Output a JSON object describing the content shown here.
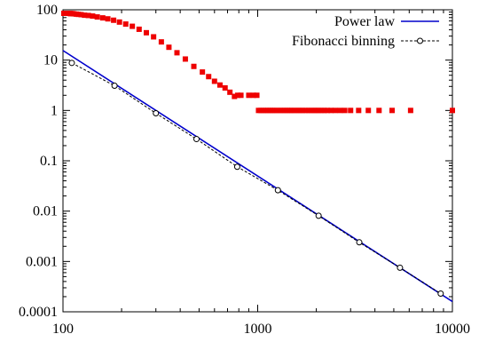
{
  "chart_data": {
    "type": "scatter",
    "x_scale": "log",
    "y_scale": "log",
    "xlim": [
      100,
      10000
    ],
    "ylim": [
      0.0001,
      100
    ],
    "grid": false,
    "legend_position": "top-right",
    "x_ticks": [
      {
        "value": 100,
        "label": "100"
      },
      {
        "value": 1000,
        "label": "1000"
      },
      {
        "value": 10000,
        "label": "10000"
      }
    ],
    "y_ticks": [
      {
        "value": 100,
        "label": "100"
      },
      {
        "value": 10,
        "label": "10"
      },
      {
        "value": 1,
        "label": "1"
      },
      {
        "value": 0.1,
        "label": "0.1"
      },
      {
        "value": 0.01,
        "label": "0.01"
      },
      {
        "value": 0.001,
        "label": "0.001"
      },
      {
        "value": 0.0001,
        "label": "0.0001"
      }
    ],
    "series": [
      {
        "name": "Power law",
        "kind": "line",
        "color": "#0000cc",
        "x": [
          100,
          10000
        ],
        "y": [
          15.5,
          0.00016
        ]
      },
      {
        "name": "Fibonacci binning",
        "kind": "line-points",
        "color": "#000000",
        "marker": "circle",
        "x": [
          111,
          184,
          300,
          485,
          785,
          1270,
          2055,
          3325,
          5381,
          8707
        ],
        "y": [
          8.8,
          3.1,
          0.88,
          0.27,
          0.076,
          0.026,
          0.0081,
          0.0024,
          0.00075,
          0.00023
        ]
      },
      {
        "kind": "points",
        "color": "#ee0000",
        "marker": "square",
        "x": [
          101,
          102,
          103,
          104,
          105,
          106,
          107,
          108,
          109,
          110,
          112,
          114,
          117,
          120,
          124,
          129,
          135,
          142,
          150,
          160,
          170,
          182,
          195,
          210,
          227,
          246,
          268,
          292,
          320,
          350,
          385,
          425,
          470,
          520,
          560,
          600,
          640,
          680,
          720,
          760,
          790,
          820,
          900,
          950,
          990,
          1010,
          1040,
          1070,
          1100,
          1130,
          1160,
          1190,
          1220,
          1260,
          1300,
          1340,
          1380,
          1420,
          1460,
          1500,
          1550,
          1600,
          1650,
          1700,
          1760,
          1820,
          1880,
          1940,
          2000,
          2060,
          2130,
          2200,
          2280,
          2380,
          2500,
          2650,
          2800,
          3000,
          3300,
          3700,
          4200,
          4900,
          6100,
          10000
        ],
        "y": [
          85,
          85,
          85,
          85,
          85,
          85,
          85,
          85,
          84,
          84,
          84,
          83,
          82,
          81,
          80,
          78,
          77,
          75,
          72,
          69,
          66,
          62,
          57,
          52,
          47,
          41,
          35,
          29,
          23,
          18,
          14,
          10.5,
          7.5,
          5.8,
          4.7,
          3.8,
          3.2,
          2.8,
          2.3,
          1.9,
          2,
          2,
          2,
          2,
          2,
          1,
          1,
          1,
          1,
          1,
          1,
          1,
          1,
          1,
          1,
          1,
          1,
          1,
          1,
          1,
          1,
          1,
          1,
          1,
          1,
          1,
          1,
          1,
          1,
          1,
          1,
          1,
          1,
          1,
          1,
          1,
          1,
          1,
          1,
          1,
          1,
          1,
          1,
          1
        ]
      }
    ]
  }
}
